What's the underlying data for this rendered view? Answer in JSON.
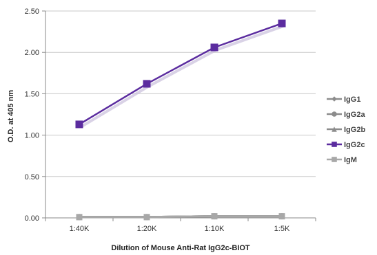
{
  "chart_data": {
    "type": "line",
    "categories": [
      "1:40K",
      "1:20K",
      "1:10K",
      "1:5K"
    ],
    "ylabel": "O.D. at 405 nm",
    "xlabel": "Dilution of Mouse Anti-Rat IgG2c-BIOT",
    "ylim": [
      0,
      2.5
    ],
    "yticks": [
      "0.00",
      "0.50",
      "1.00",
      "1.50",
      "2.00",
      "2.50"
    ],
    "grid": "horizontal",
    "legend_position": "right",
    "series": [
      {
        "name": "IgG1",
        "marker": "diamond",
        "color": "#8c8c8c",
        "values": [
          0.01,
          0.01,
          0.02,
          0.02
        ]
      },
      {
        "name": "IgG2a",
        "marker": "circle",
        "color": "#8c8c8c",
        "values": [
          0.01,
          0.01,
          0.02,
          0.02
        ]
      },
      {
        "name": "IgG2b",
        "marker": "triangle",
        "color": "#8c8c8c",
        "values": [
          0.01,
          0.01,
          0.02,
          0.02
        ]
      },
      {
        "name": "IgG2c",
        "marker": "square",
        "color": "#5b2c9f",
        "values": [
          1.13,
          1.62,
          2.06,
          2.35
        ]
      },
      {
        "name": "IgM",
        "marker": "square",
        "color": "#a8a8a8",
        "values": [
          0.01,
          0.01,
          0.02,
          0.02
        ]
      }
    ]
  }
}
